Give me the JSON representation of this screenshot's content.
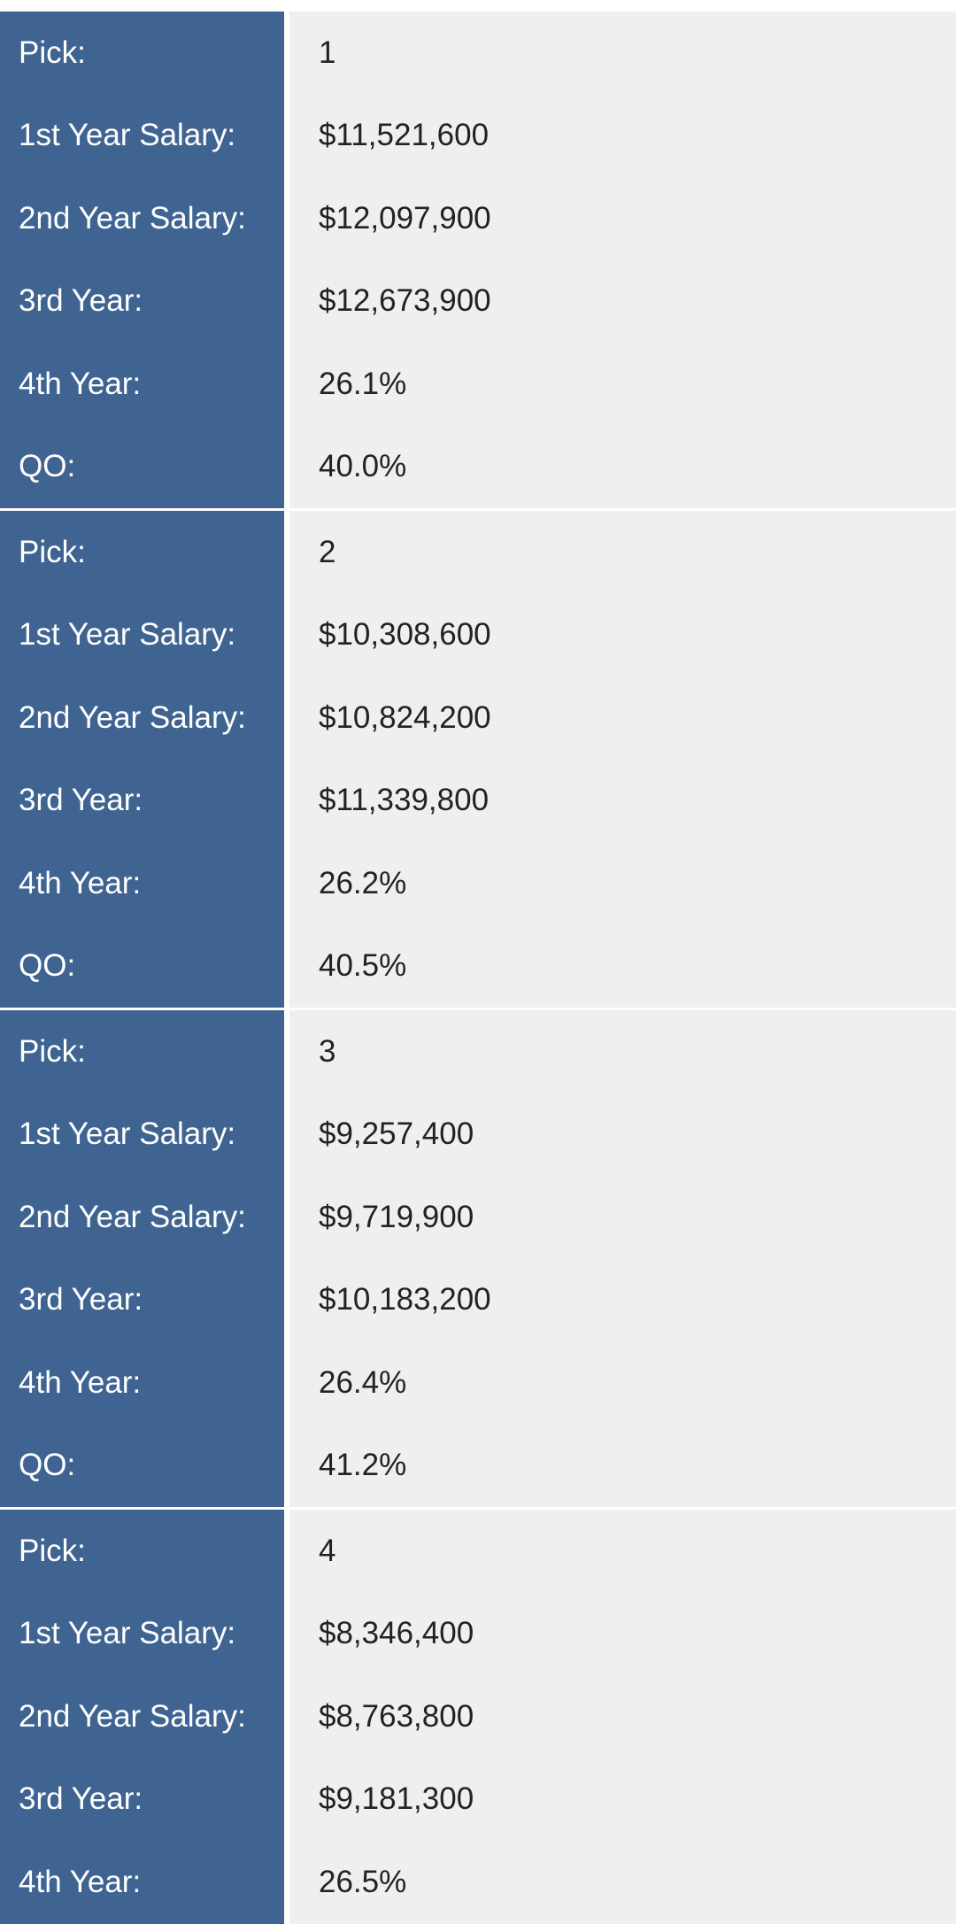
{
  "blocks": [
    {
      "rows": [
        {
          "label": "Pick:",
          "value": "1"
        },
        {
          "label": "1st Year Salary:",
          "value": "$11,521,600"
        },
        {
          "label": "2nd Year Salary:",
          "value": "$12,097,900"
        },
        {
          "label": "3rd Year:",
          "value": "$12,673,900"
        },
        {
          "label": "4th Year:",
          "value": "26.1%"
        },
        {
          "label": "QO:",
          "value": "40.0%"
        }
      ]
    },
    {
      "rows": [
        {
          "label": "Pick:",
          "value": "2"
        },
        {
          "label": "1st Year Salary:",
          "value": "$10,308,600"
        },
        {
          "label": "2nd Year Salary:",
          "value": "$10,824,200"
        },
        {
          "label": "3rd Year:",
          "value": "$11,339,800"
        },
        {
          "label": "4th Year:",
          "value": "26.2%"
        },
        {
          "label": "QO:",
          "value": "40.5%"
        }
      ]
    },
    {
      "rows": [
        {
          "label": "Pick:",
          "value": "3"
        },
        {
          "label": "1st Year Salary:",
          "value": "$9,257,400"
        },
        {
          "label": "2nd Year Salary:",
          "value": "$9,719,900"
        },
        {
          "label": "3rd Year:",
          "value": "$10,183,200"
        },
        {
          "label": "4th Year:",
          "value": "26.4%"
        },
        {
          "label": "QO:",
          "value": "41.2%"
        }
      ]
    },
    {
      "rows": [
        {
          "label": "Pick:",
          "value": "4"
        },
        {
          "label": "1st Year Salary:",
          "value": "$8,346,400"
        },
        {
          "label": "2nd Year Salary:",
          "value": "$8,763,800"
        },
        {
          "label": "3rd Year:",
          "value": "$9,181,300"
        },
        {
          "label": "4th Year:",
          "value": "26.5%"
        }
      ]
    }
  ]
}
